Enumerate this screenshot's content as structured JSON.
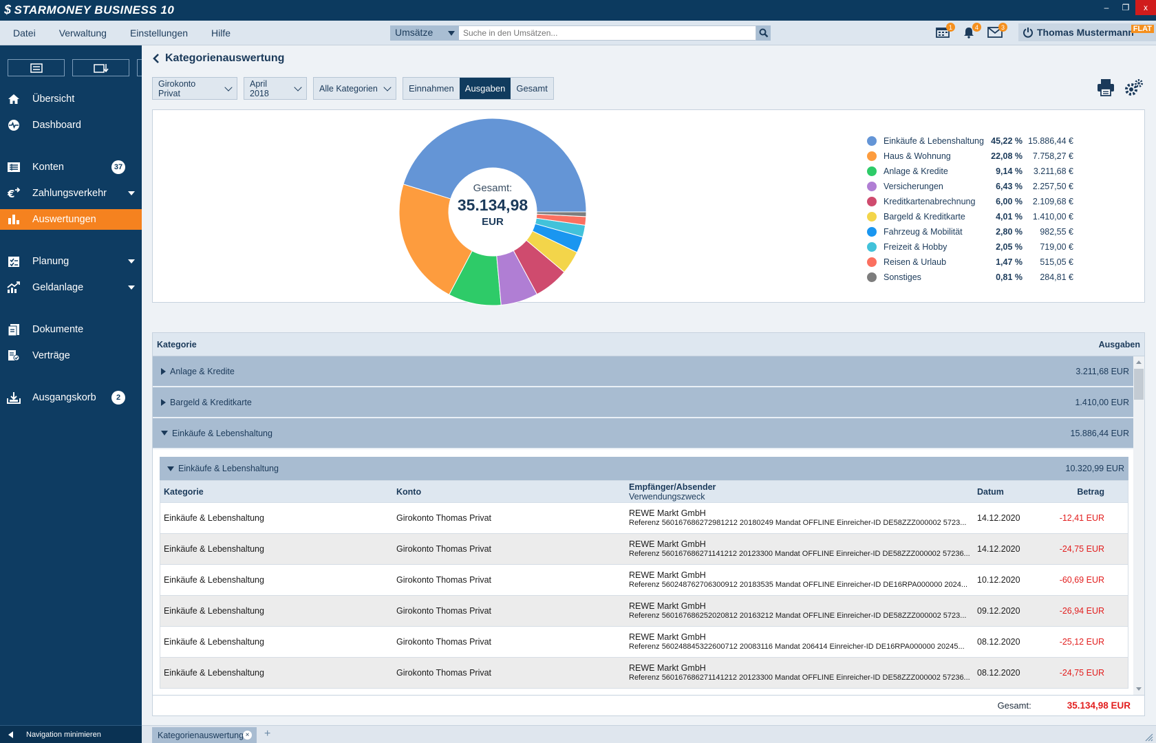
{
  "app": {
    "title": "STARMONEY BUSINESS 10"
  },
  "window": {
    "minimize": "–",
    "restore": "❐",
    "close": "x"
  },
  "menu": [
    "Datei",
    "Verwaltung",
    "Einstellungen",
    "Hilfe"
  ],
  "search": {
    "scope": "Umsätze",
    "placeholder": "Suche in den Umsätzen..."
  },
  "badges": {
    "calendar": "1",
    "bell": "4",
    "mail": "3"
  },
  "user": {
    "name": "Thomas Mustermann",
    "plan": "FLAT"
  },
  "sidebar": {
    "items": [
      {
        "label": "Übersicht",
        "icon": "home-icon"
      },
      {
        "label": "Dashboard",
        "icon": "dashboard-icon"
      },
      {
        "label": "Konten",
        "icon": "accounts-icon",
        "count": "37"
      },
      {
        "label": "Zahlungsverkehr",
        "icon": "euro-transfer-icon"
      },
      {
        "label": "Auswertungen",
        "icon": "bar-chart-icon",
        "active": true
      },
      {
        "label": "Planung",
        "icon": "planning-icon"
      },
      {
        "label": "Geldanlage",
        "icon": "investment-icon"
      },
      {
        "label": "Dokumente",
        "icon": "documents-icon"
      },
      {
        "label": "Verträge",
        "icon": "contracts-icon"
      },
      {
        "label": "Ausgangskorb",
        "icon": "outbox-icon",
        "count": "2"
      }
    ],
    "minimize_label": "Navigation minimieren"
  },
  "page": {
    "title": "Kategorienauswertung",
    "filters": {
      "account": "Girokonto Privat",
      "period": "April 2018",
      "category": "Alle Kategorien"
    },
    "segments": [
      "Einnahmen",
      "Ausgaben",
      "Gesamt"
    ],
    "active_segment": "Ausgaben"
  },
  "donut": {
    "center_label": "Gesamt:",
    "center_value": "35.134,98",
    "center_unit": "EUR"
  },
  "chart_data": {
    "type": "pie",
    "categories": [
      "Einkäufe & Lebenshaltung",
      "Haus & Wohnung",
      "Anlage & Kredite",
      "Versicherungen",
      "Kreditkartenabrechnung",
      "Bargeld & Kreditkarte",
      "Fahrzeug & Mobilität",
      "Freizeit & Hobby",
      "Reisen & Urlaub",
      "Sonstiges"
    ],
    "values": [
      15886.44,
      7758.27,
      3211.68,
      2257.5,
      2109.68,
      1410.0,
      982.55,
      719.0,
      515.05,
      284.81
    ],
    "percent_labels": [
      "45,22 %",
      "22,08 %",
      "9,14 %",
      "6,43 %",
      "6,00 %",
      "4,01 %",
      "2,80 %",
      "2,05 %",
      "1,47 %",
      "0,81 %"
    ],
    "amount_labels": [
      "15.886,44 €",
      "7.758,27 €",
      "3.211,68 €",
      "2.257,50 €",
      "2.109,68 €",
      "1.410,00 €",
      "982,55 €",
      "719,00 €",
      "515,05 €",
      "284,81 €"
    ],
    "colors": [
      "#6495d6",
      "#fd9c3e",
      "#2ecb68",
      "#b07ed4",
      "#cf4b6e",
      "#f3d54a",
      "#1a96f0",
      "#42c2da",
      "#fb7060",
      "#7d7d7d"
    ],
    "legend_position": "right"
  },
  "table": {
    "col_category": "Kategorie",
    "col_amount": "Ausgaben",
    "groups": [
      {
        "name": "Anlage & Kredite",
        "amount": "3.211,68 EUR",
        "expanded": false
      },
      {
        "name": "Bargeld & Kreditkarte",
        "amount": "1.410,00 EUR",
        "expanded": false
      },
      {
        "name": "Einkäufe & Lebenshaltung",
        "amount": "15.886,44 EUR",
        "expanded": true
      }
    ],
    "subgroup": {
      "name": "Einkäufe & Lebenshaltung",
      "amount": "10.320,99 EUR"
    },
    "columns": {
      "category": "Kategorie",
      "account": "Konto",
      "payee": "Empfänger/Absender",
      "purpose": "Verwendungszweck",
      "date": "Datum",
      "amount": "Betrag"
    },
    "rows": [
      {
        "category": "Einkäufe & Lebenshaltung",
        "account": "Girokonto Thomas Privat",
        "payee": "REWE Markt GmbH",
        "purpose": "Referenz 560167686272981212 20180249 Mandat OFFLINE Einreicher-ID DE58ZZZ000002 5723...",
        "date": "14.12.2020",
        "amount": "-12,41 EUR"
      },
      {
        "category": "Einkäufe & Lebenshaltung",
        "account": "Girokonto Thomas Privat",
        "payee": "REWE Markt GmbH",
        "purpose": "Referenz 560167686271141212 20123300 Mandat OFFLINE Einreicher-ID DE58ZZZ000002 57236...",
        "date": "14.12.2020",
        "amount": "-24,75 EUR"
      },
      {
        "category": "Einkäufe & Lebenshaltung",
        "account": "Girokonto Thomas Privat",
        "payee": "REWE Markt GmbH",
        "purpose": "Referenz 560248762706300912 20183535 Mandat OFFLINE Einreicher-ID DE16RPA000000 2024...",
        "date": "10.12.2020",
        "amount": "-60,69 EUR"
      },
      {
        "category": "Einkäufe & Lebenshaltung",
        "account": "Girokonto Thomas Privat",
        "payee": "REWE Markt GmbH",
        "purpose": "Referenz 560167686252020812 20163212 Mandat OFFLINE Einreicher-ID DE58ZZZ000002 5723...",
        "date": "09.12.2020",
        "amount": "-26,94 EUR"
      },
      {
        "category": "Einkäufe & Lebenshaltung",
        "account": "Girokonto Thomas Privat",
        "payee": "REWE Markt GmbH",
        "purpose": "Referenz 560248845322600712 20083116 Mandat 206414 Einreicher-ID DE16RPA000000 20245...",
        "date": "08.12.2020",
        "amount": "-25,12 EUR"
      },
      {
        "category": "Einkäufe & Lebenshaltung",
        "account": "Girokonto Thomas Privat",
        "payee": "REWE Markt GmbH",
        "purpose": "Referenz 560167686271141212 20123300 Mandat OFFLINE Einreicher-ID DE58ZZZ000002 57236...",
        "date": "08.12.2020",
        "amount": "-24,75 EUR"
      }
    ],
    "footer_label": "Gesamt:",
    "footer_total": "35.134,98 EUR"
  },
  "tabs": [
    {
      "label": "Kategorienauswertung"
    }
  ]
}
